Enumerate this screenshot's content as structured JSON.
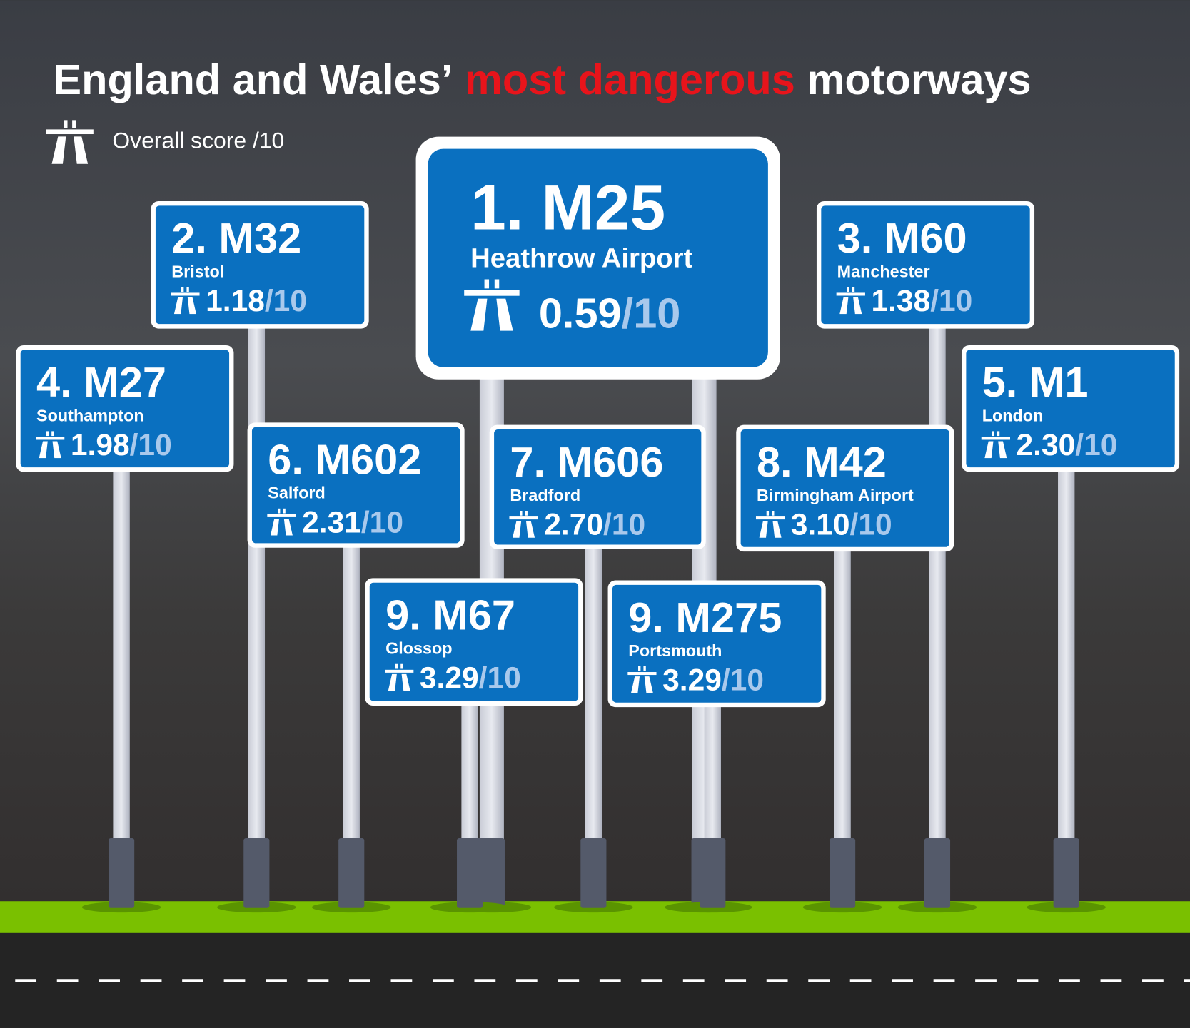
{
  "header": {
    "title_start": "England and Wales’",
    "title_highlight": "most dangerous",
    "title_end": "motorways",
    "legend": "Overall score /10"
  },
  "score_suffix": "/10",
  "signs": [
    {
      "label": "1. M25",
      "place": "Heathrow Airport",
      "score": "0.59"
    },
    {
      "label": "2. M32",
      "place": "Bristol",
      "score": "1.18"
    },
    {
      "label": "3. M60",
      "place": "Manchester",
      "score": "1.38"
    },
    {
      "label": "4. M27",
      "place": "Southampton",
      "score": "1.98"
    },
    {
      "label": "5. M1",
      "place": "London",
      "score": "2.30"
    },
    {
      "label": "6. M602",
      "place": "Salford",
      "score": "2.31"
    },
    {
      "label": "7. M606",
      "place": "Bradford",
      "score": "2.70"
    },
    {
      "label": "8. M42",
      "place": "Birmingham Airport",
      "score": "3.10"
    },
    {
      "label": "9. M67",
      "place": "Glossop",
      "score": "3.29"
    },
    {
      "label": "9. M275",
      "place": "Portsmouth",
      "score": "3.29"
    }
  ]
}
